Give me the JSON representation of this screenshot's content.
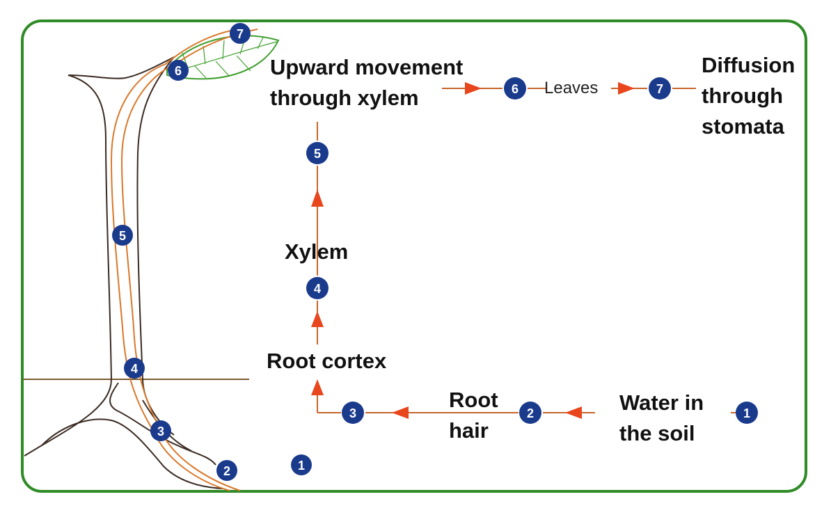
{
  "labels": {
    "upward_line1": "Upward movement",
    "upward_line2": "through xylem",
    "leaves": "Leaves",
    "diffusion_line1": "Diffusion",
    "diffusion_line2": "through",
    "diffusion_line3": "stomata",
    "xylem": "Xylem",
    "root_cortex": "Root cortex",
    "root_hair_line1": "Root",
    "root_hair_line2": "hair",
    "water_line1": "Water in",
    "water_line2": "the soil"
  },
  "step_numbers": [
    "1",
    "2",
    "3",
    "4",
    "5",
    "6",
    "7"
  ],
  "colors": {
    "frame": "#2e8b25",
    "badge": "#1a3a8c",
    "arrow": "#e8461c",
    "flow_line": "#c8642a",
    "water_path": "#d9772a",
    "plant_outline": "#3a2a22",
    "leaf": "#3f9e2c",
    "ground": "#7a5a30"
  }
}
